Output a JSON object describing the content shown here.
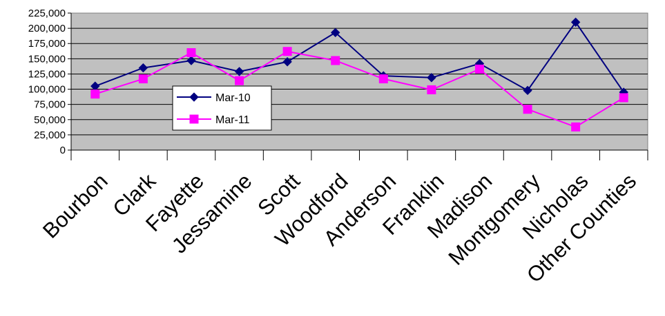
{
  "chart_data": {
    "type": "line",
    "title": "",
    "xlabel": "",
    "ylabel": "",
    "ylim": [
      0,
      225000
    ],
    "y_ticks": [
      0,
      25000,
      50000,
      75000,
      100000,
      125000,
      150000,
      175000,
      200000,
      225000
    ],
    "y_tick_labels": [
      "0",
      "25,000",
      "50,000",
      "75,000",
      "100,000",
      "125,000",
      "150,000",
      "175,000",
      "200,000",
      "225,000"
    ],
    "categories": [
      "Bourbon",
      "Clark",
      "Fayette",
      "Jessamine",
      "Scott",
      "Woodford",
      "Anderson",
      "Franklin",
      "Madison",
      "Montgomery",
      "Nicholas",
      "Other Counties"
    ],
    "grid": true,
    "plot_background": "#c0c0c0",
    "legend_position": "center-left",
    "series": [
      {
        "name": "Mar-10",
        "color": "#000080",
        "marker": "diamond",
        "values": [
          105000,
          135000,
          147000,
          129000,
          145000,
          193000,
          122000,
          119000,
          142000,
          98000,
          210000,
          95000
        ]
      },
      {
        "name": "Mar-11",
        "color": "#ff00ff",
        "marker": "square",
        "values": [
          92000,
          117000,
          160000,
          114000,
          162000,
          147000,
          117000,
          99000,
          133000,
          67000,
          38000,
          86000
        ]
      }
    ]
  }
}
